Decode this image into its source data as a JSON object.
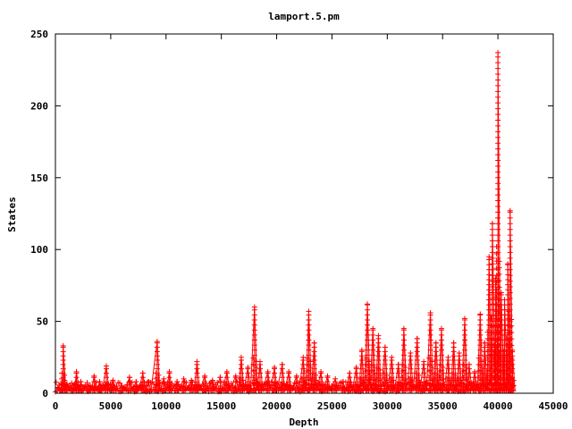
{
  "chart_data": {
    "type": "scatter",
    "title": "lamport.5.pm",
    "xlabel": "Depth",
    "ylabel": "States",
    "xlim": [
      0,
      45000
    ],
    "ylim": [
      0,
      250
    ],
    "xticks": [
      "0",
      "5000",
      "10000",
      "15000",
      "20000",
      "25000",
      "30000",
      "35000",
      "40000",
      "45000"
    ],
    "yticks": [
      "0",
      "50",
      "100",
      "150",
      "200",
      "250"
    ],
    "grid": false,
    "legend": "none",
    "marker": "+",
    "color": "#ff0000",
    "peaks": [
      [
        500,
        3
      ],
      [
        700,
        33
      ],
      [
        1000,
        6
      ],
      [
        1500,
        4
      ],
      [
        1900,
        15
      ],
      [
        2300,
        8
      ],
      [
        3000,
        5
      ],
      [
        3500,
        12
      ],
      [
        4000,
        8
      ],
      [
        4600,
        19
      ],
      [
        5200,
        9
      ],
      [
        6000,
        5
      ],
      [
        6700,
        11
      ],
      [
        7300,
        8
      ],
      [
        7900,
        14
      ],
      [
        8400,
        8
      ],
      [
        9200,
        36
      ],
      [
        9800,
        10
      ],
      [
        10300,
        15
      ],
      [
        11000,
        8
      ],
      [
        11600,
        10
      ],
      [
        12300,
        9
      ],
      [
        12800,
        22
      ],
      [
        13500,
        12
      ],
      [
        14200,
        9
      ],
      [
        14900,
        11
      ],
      [
        15500,
        15
      ],
      [
        16300,
        12
      ],
      [
        16800,
        25
      ],
      [
        17400,
        18
      ],
      [
        18000,
        60
      ],
      [
        18500,
        22
      ],
      [
        19200,
        15
      ],
      [
        19800,
        18
      ],
      [
        20500,
        20
      ],
      [
        21100,
        15
      ],
      [
        21800,
        12
      ],
      [
        22400,
        25
      ],
      [
        22900,
        57
      ],
      [
        23400,
        35
      ],
      [
        24000,
        15
      ],
      [
        24600,
        12
      ],
      [
        25300,
        10
      ],
      [
        26000,
        8
      ],
      [
        26600,
        14
      ],
      [
        27200,
        18
      ],
      [
        27700,
        30
      ],
      [
        28200,
        62
      ],
      [
        28700,
        45
      ],
      [
        29200,
        40
      ],
      [
        29800,
        32
      ],
      [
        30400,
        25
      ],
      [
        31000,
        20
      ],
      [
        31500,
        45
      ],
      [
        32100,
        28
      ],
      [
        32700,
        38
      ],
      [
        33300,
        22
      ],
      [
        33900,
        56
      ],
      [
        34400,
        35
      ],
      [
        34900,
        45
      ],
      [
        35500,
        25
      ],
      [
        36000,
        35
      ],
      [
        36500,
        28
      ],
      [
        37000,
        52
      ],
      [
        37400,
        20
      ],
      [
        37900,
        15
      ],
      [
        38400,
        55
      ],
      [
        38800,
        35
      ],
      [
        39200,
        95
      ],
      [
        39500,
        118
      ],
      [
        39800,
        80
      ],
      [
        40000,
        237
      ],
      [
        40300,
        70
      ],
      [
        40600,
        65
      ],
      [
        40900,
        90
      ],
      [
        41100,
        127
      ],
      [
        41300,
        30
      ]
    ]
  }
}
